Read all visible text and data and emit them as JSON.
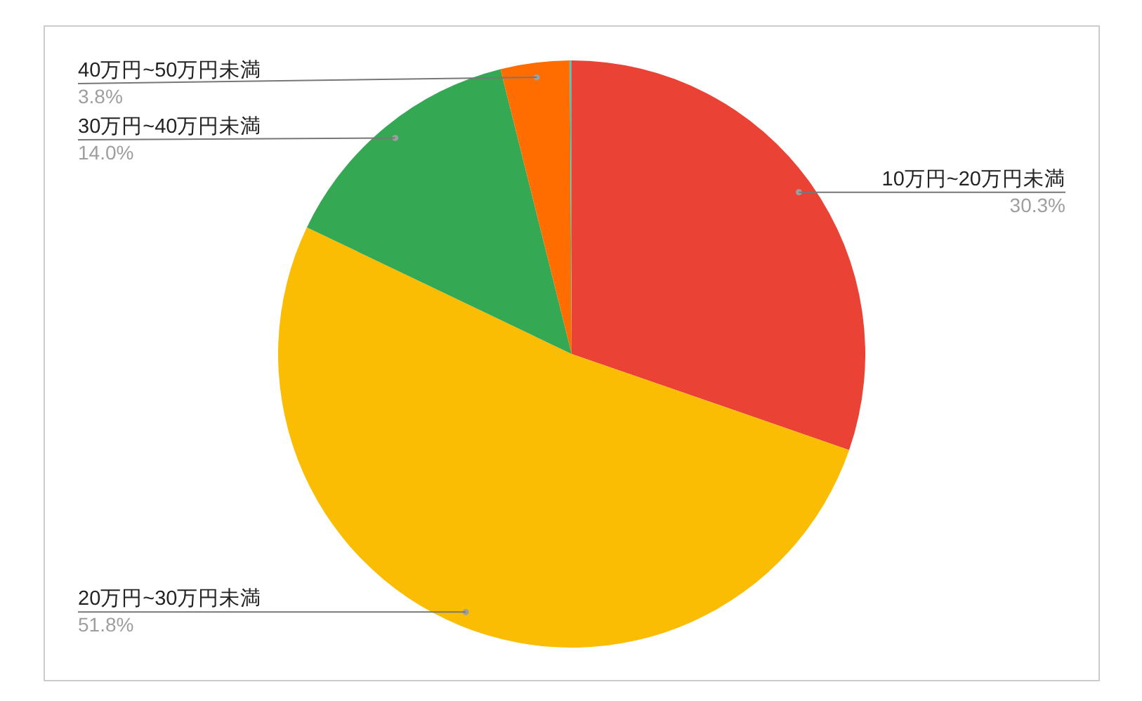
{
  "chart_data": {
    "type": "pie",
    "categories": [
      "10万円~20万円未満",
      "20万円~30万円未満",
      "30万円~40万円未満",
      "40万円~50万円未満",
      null
    ],
    "values": [
      30.3,
      51.8,
      14.0,
      3.8,
      0.1
    ],
    "colors": [
      "#ea4335",
      "#fbbc04",
      "#34a853",
      "#ff6d01",
      "#46bdc6"
    ],
    "value_labels": [
      "30.3%",
      "51.8%",
      "14.0%",
      "3.8%",
      null
    ]
  }
}
